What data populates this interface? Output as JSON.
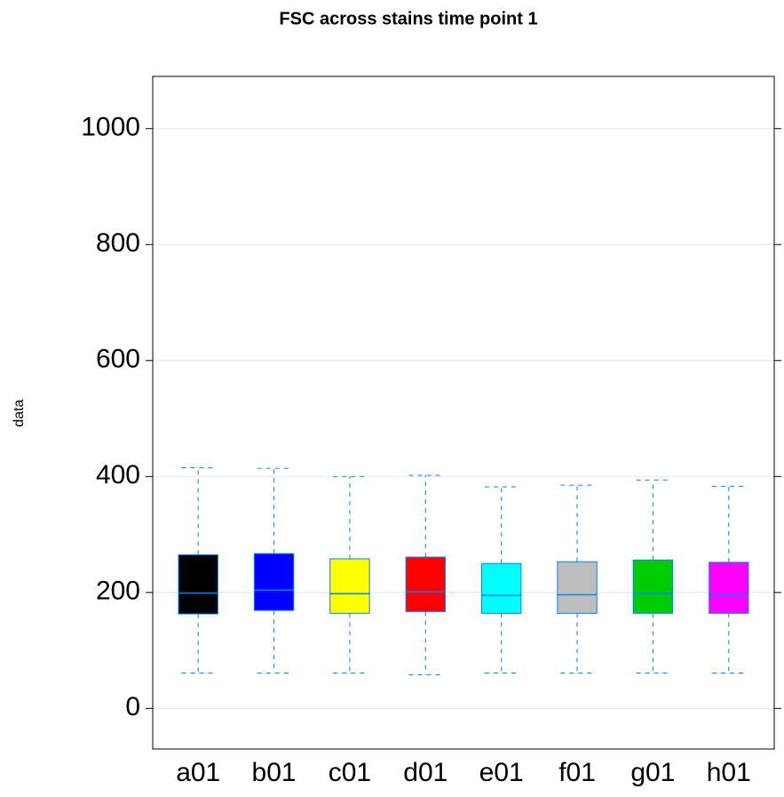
{
  "chart_data": {
    "type": "box",
    "title": "FSC across stains time point 1",
    "y_label": "data",
    "categories": [
      "a01",
      "b01",
      "c01",
      "d01",
      "e01",
      "f01",
      "g01",
      "h01"
    ],
    "colors": [
      "#000000",
      "#0000ff",
      "#ffff00",
      "#ff0000",
      "#00ffff",
      "#bebebe",
      "#00cd00",
      "#ff00ff"
    ],
    "outline_color": "#0080ff",
    "min": [
      61,
      61,
      61,
      58,
      61,
      61,
      61,
      61
    ],
    "q1": [
      163,
      169,
      164,
      167,
      164,
      164,
      164,
      164
    ],
    "median": [
      199,
      204,
      198,
      201,
      195,
      196,
      198,
      196
    ],
    "q3": [
      265,
      267,
      258,
      261,
      250,
      253,
      256,
      252
    ],
    "max": [
      415,
      414,
      400,
      402,
      382,
      385,
      394,
      383
    ],
    "ylim": [
      -70,
      1090
    ],
    "yticks": [
      0,
      200,
      400,
      600,
      800,
      1000
    ],
    "grid": true
  }
}
